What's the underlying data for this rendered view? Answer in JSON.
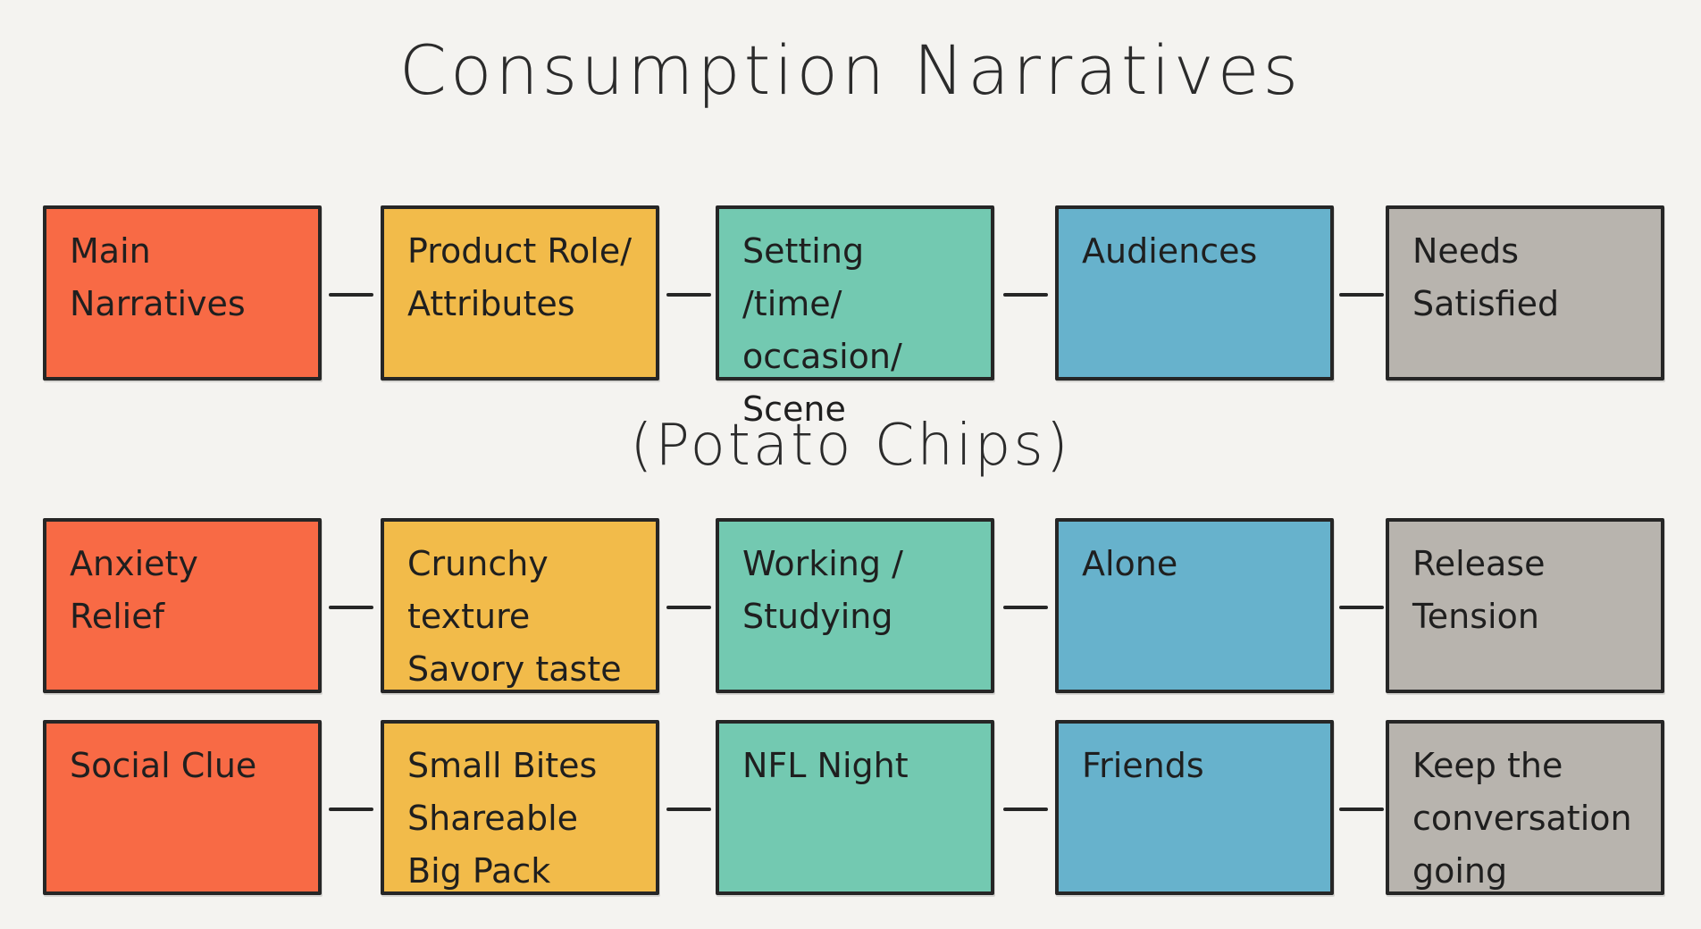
{
  "title": "Consumption Narratives",
  "subtitle": "(Potato Chips)",
  "colors": {
    "narrative": "#f86a45",
    "product": "#f2bb4a",
    "setting": "#73c9b1",
    "audience": "#67b2cc",
    "needs": "#b8b4ae"
  },
  "header": [
    "Main\nNarratives",
    "Product Role/\nAttributes",
    "Setting /time/\noccasion/\nScene",
    "Audiences",
    "Needs\nSatisfied"
  ],
  "rows": [
    [
      "Anxiety\nRelief",
      "Crunchy texture\nSavory taste",
      "Working /\nStudying",
      "Alone",
      "Release\nTension"
    ],
    [
      "Social Clue",
      "Small Bites\nShareable\nBig Pack",
      "NFL Night",
      "Friends",
      "Keep the\nconversation\ngoing"
    ]
  ]
}
